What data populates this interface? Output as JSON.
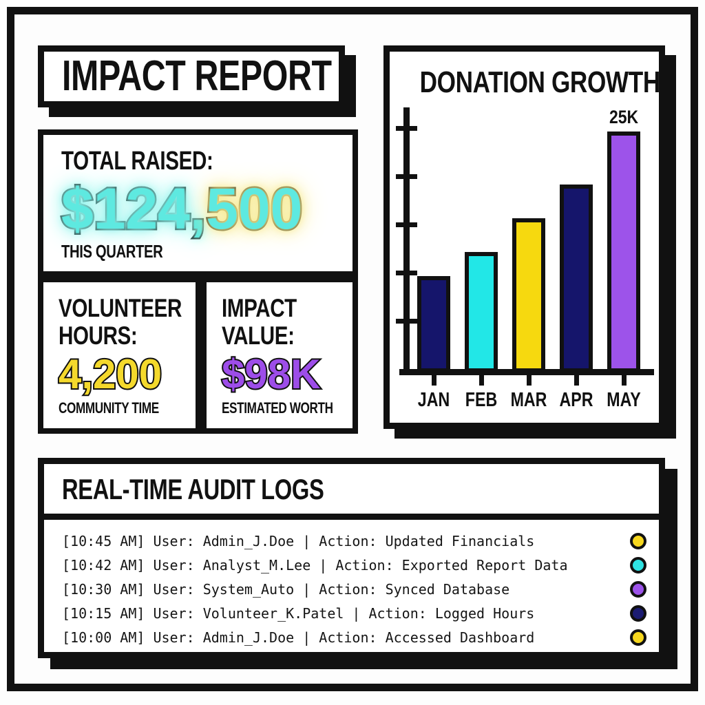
{
  "canvas": {
    "ink": "#111111",
    "paper": "#ffffff"
  },
  "report": {
    "title": "IMPACT REPORT"
  },
  "stats": {
    "total": {
      "label": "TOTAL RAISED:",
      "value": "$124,500",
      "value_parts": [
        "$124,",
        "500"
      ],
      "caption": "THIS QUARTER",
      "value_color": "#5ee9e0",
      "glow_left": "#8ef4ec",
      "glow_right": "#f6e98c"
    },
    "volunteer": {
      "label": "VOLUNTEER HOURS:",
      "value": "4,200",
      "caption": "COMMUNITY TIME",
      "value_color": "#f4d92c"
    },
    "impact": {
      "label": "IMPACT VALUE:",
      "value": "$98K",
      "caption": "ESTIMATED WORTH",
      "value_color": "#9d4de9"
    }
  },
  "chart_data": {
    "type": "bar",
    "title": "DONATION GROWTH",
    "categories": [
      "JAN",
      "FEB",
      "MAR",
      "APR",
      "MAY"
    ],
    "values": [
      10000,
      12500,
      16000,
      19500,
      25000
    ],
    "bar_colors": [
      "#15156b",
      "#22e7e7",
      "#f6d90f",
      "#15156b",
      "#9d53ea"
    ],
    "annotations": [
      {
        "category": "MAY",
        "label": "25K"
      }
    ],
    "y_axis": {
      "min": 0,
      "max": 25000,
      "tick_step": 5000,
      "tick_labels_visible": false
    },
    "x_axis_labels_visible": true,
    "grid": false,
    "legend": false
  },
  "audit": {
    "title": "REAL-TIME AUDIT LOGS",
    "entries": [
      {
        "text": "[10:45 AM] User: Admin_J.Doe | Action: Updated Financials",
        "dot_color": "#f6d71e"
      },
      {
        "text": "[10:42 AM] User: Analyst_M.Lee | Action: Exported Report Data",
        "dot_color": "#2fe2e2"
      },
      {
        "text": "[10:30 AM] User: System_Auto | Action: Synced Database",
        "dot_color": "#9d53ea"
      },
      {
        "text": "[10:15 AM] User: Volunteer_K.Patel | Action: Logged Hours",
        "dot_color": "#1c1c72"
      },
      {
        "text": "[10:00 AM] User: Admin_J.Doe | Action: Accessed Dashboard",
        "dot_color": "#f6d71e"
      }
    ]
  }
}
